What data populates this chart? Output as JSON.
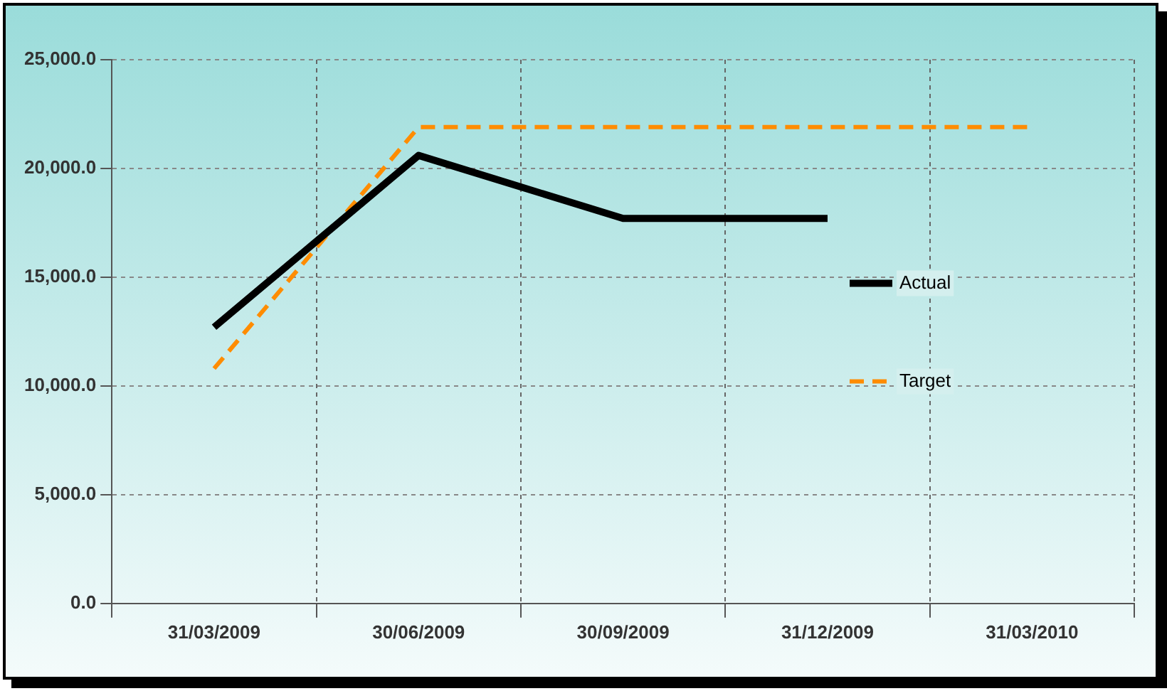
{
  "chart_data": {
    "type": "line",
    "categories": [
      "31/03/2009",
      "30/06/2009",
      "30/09/2009",
      "31/12/2009",
      "31/03/2010"
    ],
    "series": [
      {
        "name": "Actual",
        "color": "#000000",
        "line_style": "solid",
        "values": [
          12700,
          20600,
          17700,
          17700,
          null
        ]
      },
      {
        "name": "Target",
        "color": "#ff8c00",
        "line_style": "dashed",
        "values": [
          10800,
          21900,
          21900,
          21900,
          21900
        ]
      }
    ],
    "ylim": [
      0,
      25000
    ],
    "yticks": [
      {
        "value": 0,
        "label": "0.0"
      },
      {
        "value": 5000,
        "label": "5,000.0"
      },
      {
        "value": 10000,
        "label": "10,000.0"
      },
      {
        "value": 15000,
        "label": "15,000.0"
      },
      {
        "value": 20000,
        "label": "20,000.0"
      },
      {
        "value": 25000,
        "label": "25,000.0"
      }
    ],
    "grid": true,
    "legend": "right",
    "marker": "none"
  }
}
